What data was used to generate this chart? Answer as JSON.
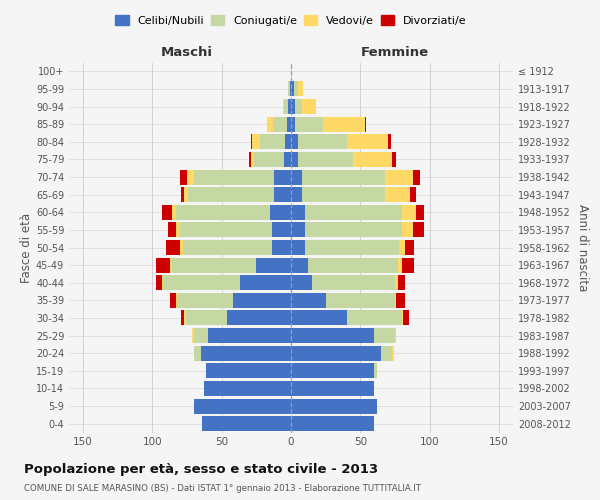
{
  "age_groups": [
    "0-4",
    "5-9",
    "10-14",
    "15-19",
    "20-24",
    "25-29",
    "30-34",
    "35-39",
    "40-44",
    "45-49",
    "50-54",
    "55-59",
    "60-64",
    "65-69",
    "70-74",
    "75-79",
    "80-84",
    "85-89",
    "90-94",
    "95-99",
    "100+"
  ],
  "birth_years": [
    "2008-2012",
    "2003-2007",
    "1998-2002",
    "1993-1997",
    "1988-1992",
    "1983-1987",
    "1978-1982",
    "1973-1977",
    "1968-1972",
    "1963-1967",
    "1958-1962",
    "1953-1957",
    "1948-1952",
    "1943-1947",
    "1938-1942",
    "1933-1937",
    "1928-1932",
    "1923-1927",
    "1918-1922",
    "1913-1917",
    "≤ 1912"
  ],
  "male_celibinubili": [
    64,
    70,
    63,
    61,
    65,
    60,
    46,
    42,
    37,
    25,
    14,
    14,
    15,
    12,
    12,
    5,
    4,
    3,
    2,
    1,
    0
  ],
  "male_coniugatile": [
    0,
    0,
    0,
    0,
    5,
    10,
    30,
    40,
    55,
    61,
    64,
    67,
    68,
    62,
    58,
    22,
    18,
    10,
    3,
    1,
    0
  ],
  "male_vedovile": [
    0,
    0,
    0,
    0,
    0,
    1,
    1,
    1,
    1,
    1,
    2,
    2,
    3,
    3,
    5,
    2,
    6,
    4,
    1,
    0,
    0
  ],
  "male_divorziatile": [
    0,
    0,
    0,
    0,
    0,
    0,
    2,
    4,
    4,
    10,
    10,
    6,
    7,
    2,
    5,
    1,
    1,
    0,
    0,
    0,
    0
  ],
  "female_celibinubili": [
    60,
    62,
    60,
    60,
    65,
    60,
    40,
    25,
    15,
    12,
    10,
    10,
    10,
    8,
    8,
    5,
    5,
    3,
    3,
    2,
    0
  ],
  "female_coniugatile": [
    0,
    0,
    0,
    2,
    8,
    15,
    40,
    50,
    60,
    65,
    68,
    70,
    70,
    60,
    60,
    40,
    35,
    20,
    5,
    3,
    0
  ],
  "female_vedovile": [
    0,
    0,
    0,
    0,
    1,
    1,
    1,
    1,
    2,
    3,
    4,
    8,
    10,
    18,
    20,
    28,
    30,
    30,
    10,
    4,
    1
  ],
  "female_divorziatile": [
    0,
    0,
    0,
    0,
    0,
    0,
    4,
    6,
    5,
    9,
    7,
    8,
    6,
    4,
    5,
    3,
    2,
    1,
    0,
    0,
    0
  ],
  "colors": {
    "celibi": "#4472c4",
    "coniugati": "#c5d8a4",
    "vedovi": "#ffd966",
    "divorziati": "#cc0000"
  },
  "title": "Popolazione per età, sesso e stato civile - 2013",
  "subtitle": "COMUNE DI SALE MARASINO (BS) - Dati ISTAT 1° gennaio 2013 - Elaborazione TUTTITALIA.IT",
  "xlabel_left": "Maschi",
  "xlabel_right": "Femmine",
  "ylabel_left": "Fasce di età",
  "ylabel_right": "Anni di nascita",
  "xlim": 160,
  "bg_color": "#f5f5f5",
  "grid_color": "#cccccc",
  "bar_height": 0.85
}
